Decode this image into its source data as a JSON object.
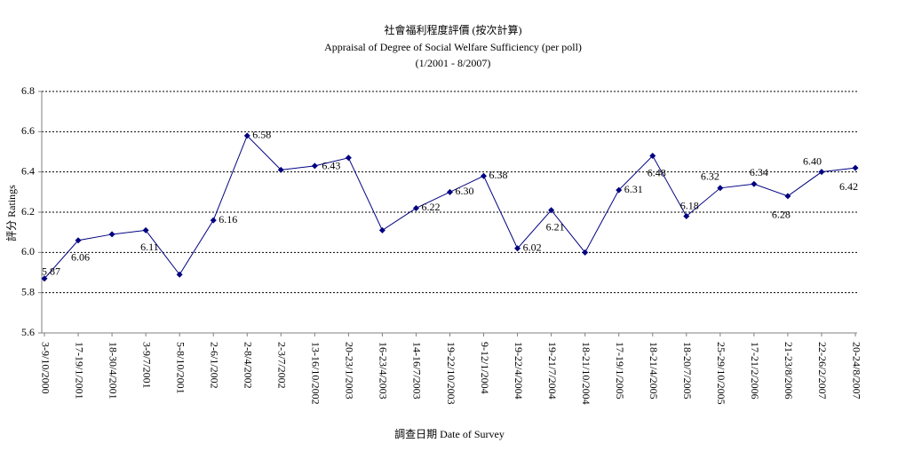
{
  "chart_data": {
    "type": "line",
    "title": "社會福利程度評價 (按次計算)",
    "subtitle": "Appraisal of Degree of Social Welfare Sufficiency (per poll)",
    "period": "(1/2001 - 8/2007)",
    "x_label": "調查日期 Date of Survey",
    "y_label": "評分 Ratings",
    "categories": [
      "3-9/10/2000",
      "17-19/1/2001",
      "18-30/4/2001",
      "3-9/7/2001",
      "5-8/10/2001",
      "2-6/1/2002",
      "2-8/4/2002",
      "2-3/7/2002",
      "13-16/10/2002",
      "20-23/1/2003",
      "16-23/4/2003",
      "14-16/7/2003",
      "19-22/10/2003",
      "9-12/1/2004",
      "19-22/4/2004",
      "19-21/7/2004",
      "18-21/10/2004",
      "17-19/1/2005",
      "18-21/4/2005",
      "18-20/7/2005",
      "25-29/10/2005",
      "17-21/2/2006",
      "21-23/8/2006",
      "22-26/2/2007",
      "20-24/8/2007"
    ],
    "series": [
      {
        "name": "評分 Ratings",
        "color": "#000080",
        "values": [
          5.87,
          6.06,
          6.09,
          6.11,
          5.89,
          6.16,
          6.58,
          6.41,
          6.43,
          6.47,
          6.11,
          6.22,
          6.3,
          6.38,
          6.02,
          6.21,
          6.0,
          6.31,
          6.48,
          6.18,
          6.32,
          6.34,
          6.28,
          6.4,
          6.42
        ],
        "value_labels": [
          "5.87",
          "6.06",
          null,
          "6.11",
          null,
          "6.16",
          "6.58",
          null,
          "6.43",
          null,
          null,
          "6.22",
          "6.30",
          "6.38",
          "6.02",
          "6.21",
          null,
          "6.31",
          "6.48",
          "6.18",
          "6.32",
          "6.34",
          "6.28",
          "6.40",
          "6.42"
        ]
      }
    ],
    "ylim": [
      5.6,
      6.8
    ],
    "yticks": [
      5.6,
      5.8,
      {
        "value": 6,
        "label": "6.0"
      },
      6.2,
      6.4,
      6.6,
      6.8
    ],
    "grid": true
  }
}
